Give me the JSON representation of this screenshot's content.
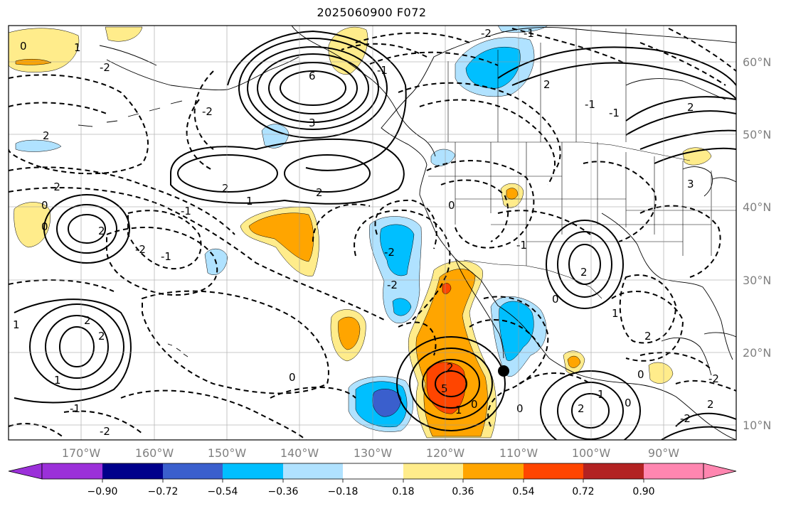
{
  "title": "2025060900 F072",
  "longitude_labels": [
    "170°W",
    "160°W",
    "150°W",
    "140°W",
    "130°W",
    "120°W",
    "110°W",
    "100°W",
    "90°W"
  ],
  "latitude_labels": [
    "60°N",
    "50°N",
    "40°N",
    "30°N",
    "20°N",
    "10°N"
  ],
  "colorbar": {
    "tick_labels": [
      "−0.90",
      "−0.72",
      "−0.54",
      "−0.36",
      "−0.18",
      "0.18",
      "0.36",
      "0.54",
      "0.72",
      "0.90"
    ],
    "colors": [
      "#9b30d9",
      "#00008b",
      "#3a5fcd",
      "#00bfff",
      "#b0e2ff",
      "#ffffff",
      "#ffec8b",
      "#ffa500",
      "#ff4500",
      "#b22222",
      "#ff86b0"
    ]
  },
  "contour_labels": [
    "0",
    "1",
    "2",
    "1",
    "-2",
    "6",
    "3",
    "-2",
    "2",
    "-2",
    "-2",
    "2",
    "1",
    "-1",
    "-2",
    "-1",
    "0",
    "-2",
    "-1",
    "2",
    "-2",
    "0",
    "-1",
    "-1",
    "2",
    "-2",
    "-2",
    "-2",
    "-2",
    "2",
    "-1",
    "-2",
    "-1",
    "-1",
    "1",
    "0",
    "-2",
    "2",
    "-2",
    "0",
    "-1",
    "0",
    "1",
    "0",
    "-2",
    "1",
    "2",
    "1",
    "-1",
    "0",
    "-2",
    "0",
    "2",
    "-1",
    "2",
    "-2",
    "5",
    "1",
    "0",
    "-2",
    "1",
    "-1",
    "1",
    "1",
    "2",
    "2",
    "0",
    "0",
    "-2",
    "1",
    "-1",
    "-2",
    "2",
    "1",
    "3",
    "-2",
    "2",
    "0",
    "0"
  ],
  "point_marker": "black-dot"
}
